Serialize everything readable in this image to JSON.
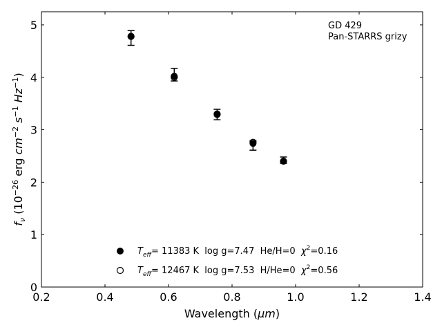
{
  "chart_data": {
    "type": "scatter",
    "annotation": [
      "GD 429",
      "Pan-STARRS grizy"
    ],
    "xlabel_main": "Wavelength (",
    "xlabel_unit": "μm",
    "xlabel_end": ")",
    "ylabel": {
      "f": "f",
      "nu": "ν",
      "open": " (10",
      "exp1": "−26",
      "erg": " erg ",
      "cm": "cm",
      "exp2": "−2",
      "s": " s",
      "exp3": "−1",
      "hz": " Hz",
      "exp4": "−1",
      "close": ")"
    },
    "xlim": [
      0.2,
      1.4
    ],
    "ylim": [
      0,
      5.25
    ],
    "xticks": [
      "0.2",
      "0.4",
      "0.6",
      "0.8",
      "1.0",
      "1.2",
      "1.4"
    ],
    "yticks": [
      "0",
      "1",
      "2",
      "3",
      "4",
      "5"
    ],
    "observed": {
      "x": [
        0.482,
        0.618,
        0.753,
        0.866,
        0.962
      ],
      "y": [
        4.75,
        4.05,
        3.29,
        2.7,
        2.42
      ],
      "err": [
        0.14,
        0.12,
        0.1,
        0.09,
        0.06
      ]
    },
    "series": [
      {
        "name": "Teff= 11383 K  log g=7.47  He/H=0  χ2=0.16",
        "marker": "filled",
        "x": [
          0.482,
          0.618,
          0.753,
          0.866,
          0.962
        ],
        "y": [
          4.78,
          4.02,
          3.29,
          2.74,
          2.4
        ]
      },
      {
        "name": "Teff= 12467 K  log g=7.53  H/He=0  χ2=0.56",
        "marker": "open",
        "x": [
          0.482,
          0.618,
          0.753,
          0.866,
          0.962
        ],
        "y": [
          4.78,
          4.0,
          3.3,
          2.76,
          2.4
        ]
      }
    ],
    "legend": [
      {
        "t": "T",
        "sub": "eff",
        "rest": "= 11383 K  log g=7.47  He/H=0  ",
        "chi": "χ",
        "sup": "2",
        "val": "=0.16"
      },
      {
        "t": "T",
        "sub": "eff",
        "rest": "= 12467 K  log g=7.53  H/He=0  ",
        "chi": "χ",
        "sup": "2",
        "val": "=0.56"
      }
    ],
    "legend_placement": "lower-center",
    "grid": false
  }
}
